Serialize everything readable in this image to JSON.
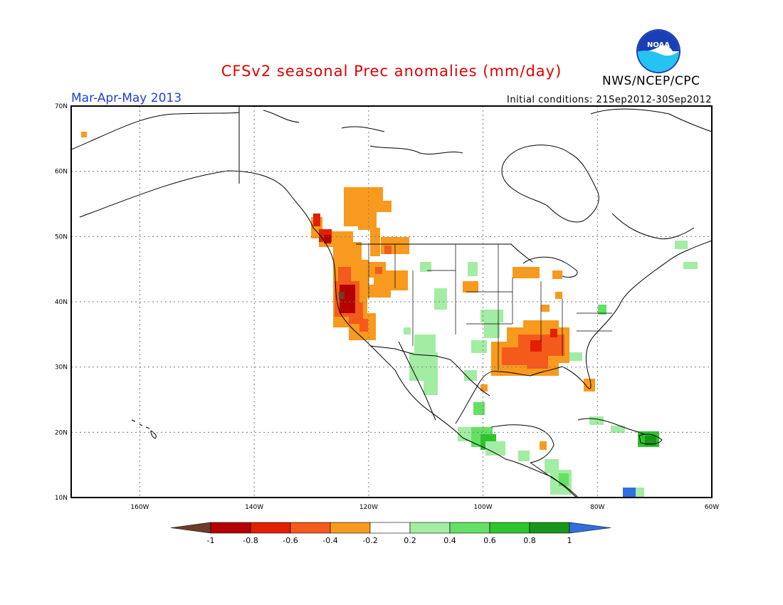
{
  "header": {
    "title": "CFSv2 seasonal Prec anomalies (mm/day)",
    "season": "Mar-Apr-May 2013",
    "initial_conditions": "Initial conditions: 21Sep2012-30Sep2012",
    "agency": "NWS/NCEP/CPC",
    "logo_text": "NOAA"
  },
  "map": {
    "projection": "lat-lon",
    "lat_range": [
      10,
      70
    ],
    "lon_range": [
      -172,
      -60
    ],
    "lat_ticks": [
      "10N",
      "20N",
      "30N",
      "40N",
      "50N",
      "60N",
      "70N"
    ],
    "lon_ticks": [
      "160W",
      "140W",
      "120W",
      "100W",
      "80W",
      "60W"
    ],
    "gridlines": "dotted"
  },
  "colorbar": {
    "ticks": [
      "-1",
      "-0.8",
      "-0.6",
      "-0.4",
      "-0.2",
      "0.2",
      "0.4",
      "0.6",
      "0.8",
      "1"
    ],
    "colors": [
      "#6b3d2a",
      "#b40000",
      "#e02000",
      "#f45a1c",
      "#f79a1e",
      "#ffffff",
      "#a3eca3",
      "#64e064",
      "#2cc52c",
      "#199619",
      "#2f6fe0"
    ]
  }
}
